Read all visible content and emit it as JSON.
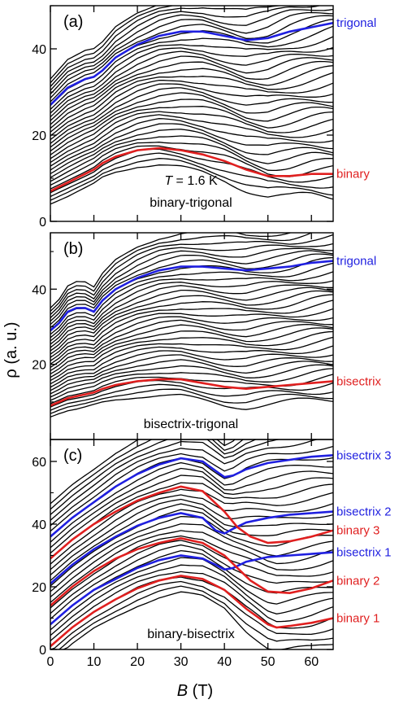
{
  "figure": {
    "ylabel": "ρ (a. u.)",
    "xlabel_symbol": "B",
    "xlabel_unit": " (T)",
    "colors": {
      "black": "#000000",
      "blue": "#1f1fe0",
      "red": "#e01f1f"
    }
  },
  "chart_data": [
    {
      "type": "line",
      "panel_label": "(a)",
      "annotation_line1_symbol": "T",
      "annotation_line1_rest": " = 1.6 K",
      "annotation_line2": "binary-trigonal",
      "xlim": [
        0,
        65
      ],
      "ylim": [
        0,
        50
      ],
      "yticks": [
        0,
        20,
        40
      ],
      "background_curves": 34,
      "highlighted_series": [
        {
          "name": "trigonal",
          "color": "#1f1fe0",
          "x": [
            0,
            2,
            4,
            6,
            8,
            10,
            12,
            15,
            20,
            25,
            30,
            35,
            40,
            45,
            50,
            55,
            60,
            65
          ],
          "y": [
            27,
            29,
            31,
            32,
            33,
            33.5,
            35,
            38,
            41,
            43,
            44,
            44,
            43,
            42,
            42.5,
            44,
            45,
            46
          ]
        },
        {
          "name": "binary",
          "color": "#e01f1f",
          "x": [
            0,
            2,
            4,
            6,
            8,
            10,
            12,
            15,
            20,
            25,
            30,
            35,
            40,
            45,
            50,
            55,
            60,
            65
          ],
          "y": [
            7,
            8,
            9,
            10,
            11,
            12,
            13.5,
            15,
            16.5,
            17,
            16.5,
            15.5,
            14,
            12,
            10.5,
            10.5,
            11,
            11
          ]
        }
      ]
    },
    {
      "type": "line",
      "panel_label": "(b)",
      "annotation_line1_symbol": "",
      "annotation_line1_rest": "",
      "annotation_line2": "bisectrix-trigonal",
      "xlim": [
        0,
        65
      ],
      "ylim": [
        0,
        55
      ],
      "yticks": [
        20,
        40
      ],
      "background_curves": 34,
      "highlighted_series": [
        {
          "name": "trigonal",
          "color": "#1f1fe0",
          "x": [
            0,
            2,
            4,
            6,
            8,
            10,
            12,
            15,
            20,
            25,
            30,
            35,
            40,
            45,
            50,
            55,
            60,
            65
          ],
          "y": [
            29,
            31,
            34,
            35,
            35,
            34,
            37,
            40,
            43,
            45,
            46,
            46,
            45.5,
            45,
            45.5,
            46,
            47,
            47.5
          ]
        },
        {
          "name": "bisectrix",
          "color": "#e01f1f",
          "x": [
            0,
            2,
            4,
            6,
            8,
            10,
            12,
            15,
            20,
            25,
            30,
            35,
            40,
            45,
            50,
            55,
            60,
            65
          ],
          "y": [
            9,
            10,
            11,
            11.5,
            12,
            12.5,
            13.5,
            14.5,
            15.5,
            16,
            16,
            15,
            14,
            13.5,
            14,
            14.5,
            15,
            15.5
          ]
        }
      ]
    },
    {
      "type": "line",
      "panel_label": "(c)",
      "annotation_line1_symbol": "",
      "annotation_line1_rest": "",
      "annotation_line2": "binary-bisectrix",
      "xlim": [
        0,
        65
      ],
      "ylim": [
        0,
        67
      ],
      "yticks": [
        0,
        20,
        40,
        60
      ],
      "background_curves": 30,
      "highlighted_series": [
        {
          "name": "bisectrix 3",
          "color": "#1f1fe0",
          "x": [
            0,
            5,
            10,
            15,
            20,
            25,
            30,
            35,
            38,
            40,
            42,
            45,
            50,
            55,
            60,
            65
          ],
          "y": [
            36,
            42,
            47,
            52,
            56,
            59,
            61,
            60,
            57,
            55,
            55.5,
            57.5,
            59.5,
            60.5,
            61.5,
            62
          ]
        },
        {
          "name": "bisectrix 2",
          "color": "#1f1fe0",
          "x": [
            0,
            5,
            10,
            15,
            20,
            25,
            30,
            35,
            38,
            40,
            42,
            45,
            50,
            55,
            60,
            65
          ],
          "y": [
            21,
            27,
            32,
            36,
            39.5,
            42,
            43.5,
            42,
            38,
            37,
            38.5,
            40.5,
            42,
            43,
            43.5,
            44
          ]
        },
        {
          "name": "binary 3",
          "color": "#e01f1f",
          "x": [
            0,
            5,
            10,
            15,
            20,
            25,
            30,
            35,
            40,
            43,
            46,
            50,
            55,
            60,
            65
          ],
          "y": [
            29,
            35,
            40,
            44,
            47.5,
            50,
            52,
            50.5,
            44,
            39,
            36,
            34,
            34.5,
            36,
            38
          ]
        },
        {
          "name": "bisectrix 1",
          "color": "#1f1fe0",
          "x": [
            0,
            5,
            10,
            15,
            20,
            25,
            30,
            35,
            38,
            40,
            42,
            45,
            50,
            55,
            60,
            65
          ],
          "y": [
            8,
            14,
            19,
            22.5,
            26,
            28.5,
            30,
            29,
            27,
            25.5,
            26,
            28,
            29.5,
            30,
            30.5,
            31
          ]
        },
        {
          "name": "binary 2",
          "color": "#e01f1f",
          "x": [
            0,
            5,
            10,
            15,
            20,
            25,
            30,
            35,
            40,
            43,
            46,
            50,
            55,
            60,
            65
          ],
          "y": [
            14,
            20,
            25,
            29,
            32,
            34,
            35.5,
            34,
            30,
            26,
            22,
            18.5,
            18,
            19.5,
            22
          ]
        },
        {
          "name": "binary 1",
          "color": "#e01f1f",
          "x": [
            0,
            5,
            10,
            15,
            20,
            25,
            30,
            35,
            40,
            45,
            50,
            52,
            55,
            60,
            65
          ],
          "y": [
            1,
            7,
            12,
            16,
            19.5,
            22,
            23.5,
            22.5,
            19,
            13,
            8,
            7,
            7.5,
            8.5,
            10
          ]
        }
      ]
    }
  ],
  "xaxis": {
    "ticks": [
      0,
      10,
      20,
      30,
      40,
      50,
      60
    ]
  }
}
